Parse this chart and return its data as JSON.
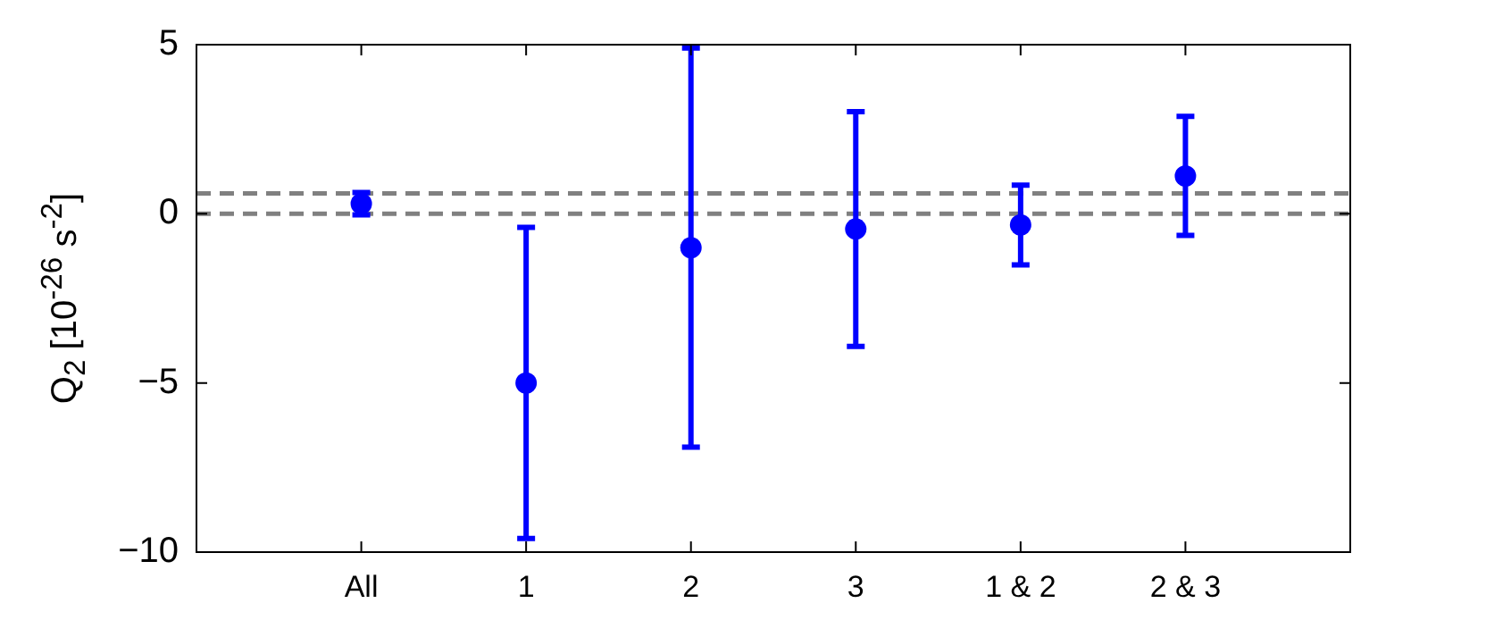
{
  "chart_data": {
    "type": "scatter",
    "ylabel": "Q$_{2}$ [10$^{-26}$ s$^{-2}$]",
    "categories": [
      null,
      "All",
      "1",
      "2",
      "3",
      "1 & 2",
      "2 & 3",
      null
    ],
    "values": [
      null,
      0.3,
      -5.0,
      -1.0,
      -0.45,
      -0.33,
      1.12,
      null
    ],
    "errors": [
      null,
      0.33,
      4.6,
      5.9,
      3.47,
      1.18,
      1.76,
      null
    ],
    "color": "#0000ff",
    "marker": "circle",
    "ylim": [
      -10,
      5
    ],
    "yticks": [
      {
        "value": -10,
        "label": "−10"
      },
      {
        "value": -5,
        "label": "−5"
      },
      0,
      5
    ],
    "ref_lines": [
      {
        "axis": "y",
        "value": 0.6,
        "color": "#808080",
        "line_style": "dashed"
      },
      {
        "axis": "y",
        "value": 0,
        "color": "#808080",
        "line_style": "dashed"
      }
    ],
    "grid": false,
    "legend": false
  }
}
